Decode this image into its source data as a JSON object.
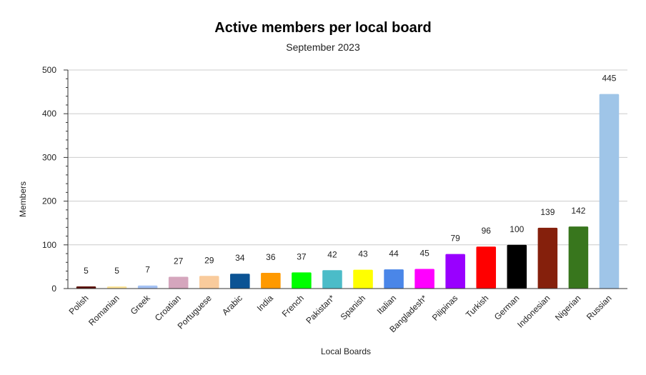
{
  "chart_data": {
    "type": "bar",
    "title": "Active members per local board",
    "subtitle": "September 2023",
    "xlabel": "Local Boards",
    "ylabel": "Members",
    "ylim": [
      0,
      500
    ],
    "yticks": [
      0,
      100,
      200,
      300,
      400,
      500
    ],
    "grid": true,
    "legend": "none",
    "categories": [
      "Polish",
      "Romanian",
      "Greek",
      "Croatian",
      "Portuguese",
      "Arabic",
      "India",
      "French",
      "Pakistan*",
      "Spanish",
      "Italian",
      "Bangladesh*",
      "Pilipinas",
      "Turkish",
      "German",
      "Indonesian",
      "Nigerian",
      "Russian"
    ],
    "values": [
      5,
      5,
      7,
      27,
      29,
      34,
      36,
      37,
      42,
      43,
      44,
      45,
      79,
      96,
      100,
      139,
      142,
      445
    ],
    "colors": [
      "#5b0f00",
      "#ffe599",
      "#a4c2f4",
      "#d5a6bd",
      "#f9cb9c",
      "#0b5394",
      "#ff9900",
      "#00ff00",
      "#4bbcc8",
      "#ffff00",
      "#4a86e8",
      "#ff00ff",
      "#9900ff",
      "#ff0000",
      "#000000",
      "#85200c",
      "#38761d",
      "#9fc5e8"
    ]
  }
}
